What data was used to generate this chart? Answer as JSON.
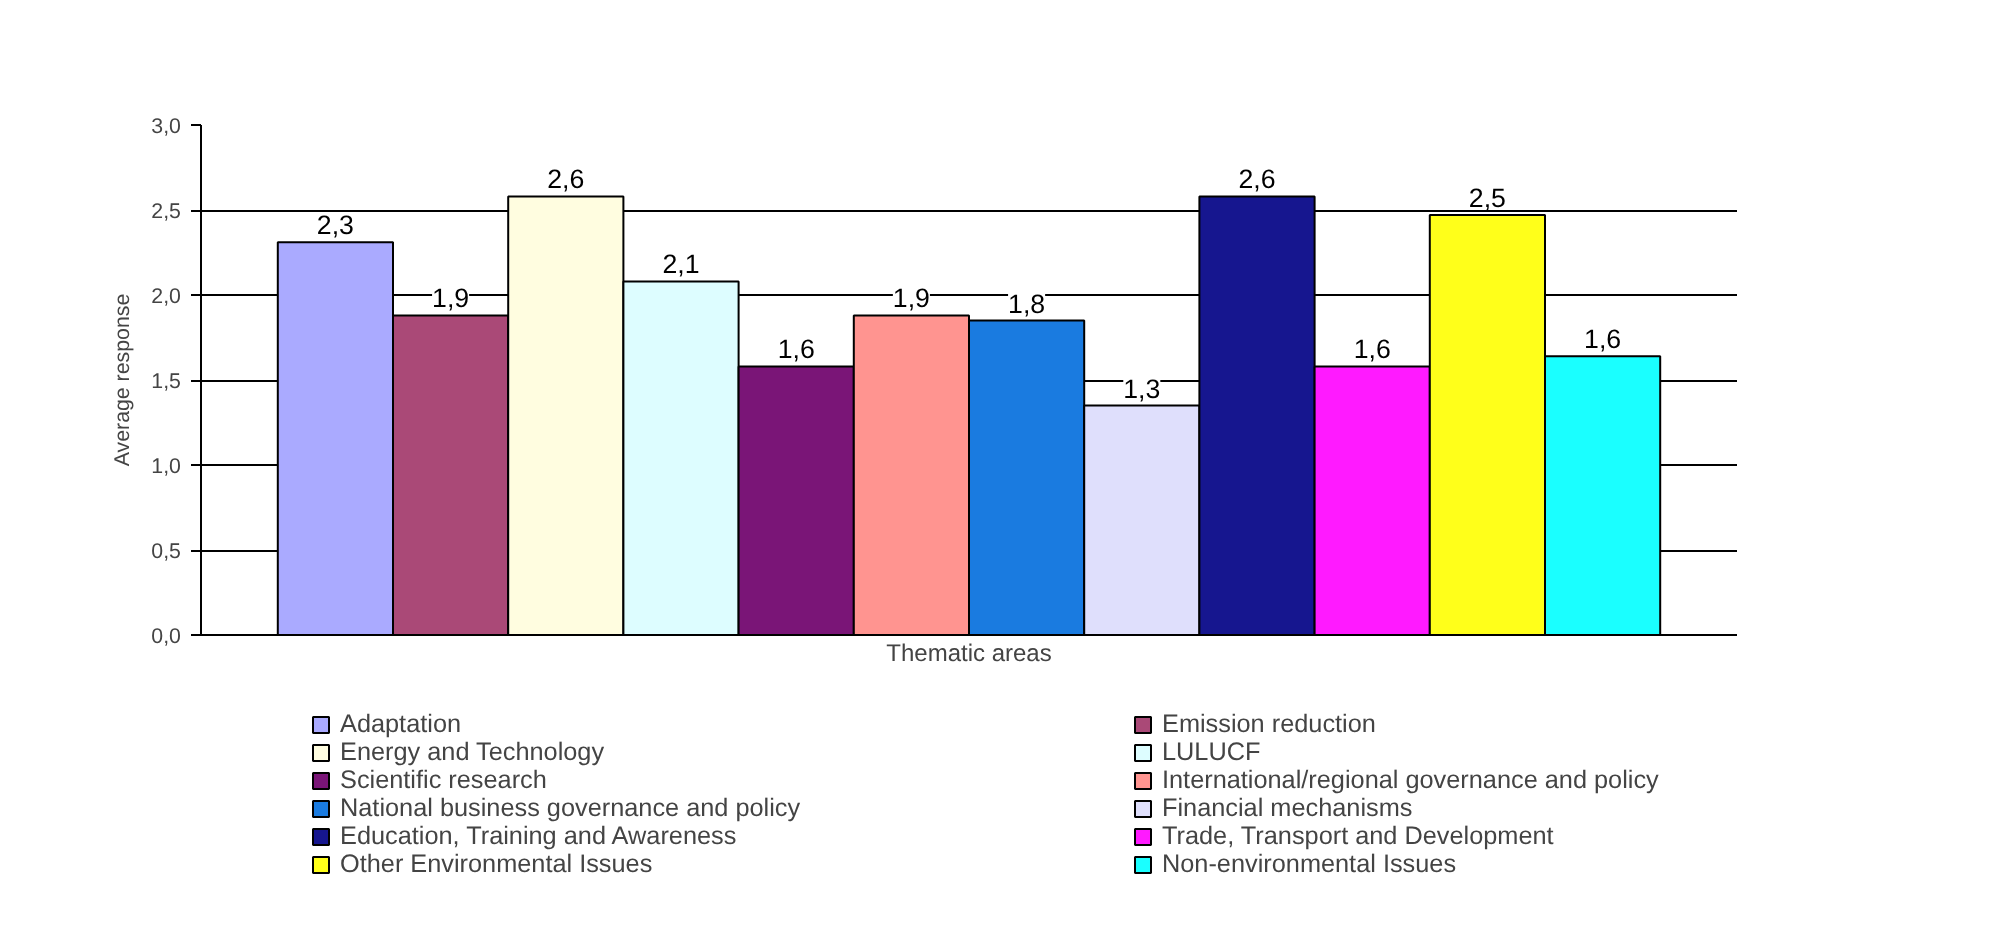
{
  "chart_data": {
    "type": "bar",
    "xlabel": "Thematic areas",
    "ylabel": "Average response",
    "categories": [
      null
    ],
    "ylim": [
      0,
      3
    ],
    "yticks": [
      {
        "value": 0,
        "label": "0,0"
      },
      {
        "value": 0.5,
        "label": "0,5"
      },
      {
        "value": 1,
        "label": "1,0"
      },
      {
        "value": 1.5,
        "label": "1,5"
      },
      {
        "value": 2,
        "label": "2,0"
      },
      {
        "value": 2.5,
        "label": "2,5"
      },
      {
        "value": 3,
        "label": "3,0"
      }
    ],
    "grid": "y",
    "legend": "bottom",
    "series": [
      {
        "name": "Adaptation",
        "color": "#aaaaff",
        "values": [
          2.31
        ],
        "value_labels": [
          "2,3"
        ]
      },
      {
        "name": "Emission reduction",
        "color": "#aa4977",
        "values": [
          1.88
        ],
        "value_labels": [
          "1,9"
        ]
      },
      {
        "name": "Energy and Technology",
        "color": "#fffde0",
        "values": [
          2.58
        ],
        "value_labels": [
          "2,6"
        ]
      },
      {
        "name": "LULUCF",
        "color": "#ddfdff",
        "values": [
          2.08
        ],
        "value_labels": [
          "2,1"
        ]
      },
      {
        "name": "Scientific research",
        "color": "#7a1577",
        "values": [
          1.58
        ],
        "value_labels": [
          "1,6"
        ]
      },
      {
        "name": "International/regional governance and policy",
        "color": "#ff9490",
        "values": [
          1.88
        ],
        "value_labels": [
          "1,9"
        ]
      },
      {
        "name": "National business governance and policy",
        "color": "#1a7be0",
        "values": [
          1.85
        ],
        "value_labels": [
          "1,8"
        ]
      },
      {
        "name": "Financial mechanisms",
        "color": "#dfdffc",
        "values": [
          1.35
        ],
        "value_labels": [
          "1,3"
        ]
      },
      {
        "name": "Education, Training and Awareness",
        "color": "#16168f",
        "values": [
          2.58
        ],
        "value_labels": [
          "2,6"
        ]
      },
      {
        "name": "Trade, Transport and Development",
        "color": "#ff1aff",
        "values": [
          1.58
        ],
        "value_labels": [
          "1,6"
        ]
      },
      {
        "name": "Other Environmental Issues",
        "color": "#ffff1a",
        "values": [
          2.47
        ],
        "value_labels": [
          "2,5"
        ]
      },
      {
        "name": "Non-environmental Issues",
        "color": "#1affff",
        "values": [
          1.64
        ],
        "value_labels": [
          "1,6"
        ]
      }
    ]
  }
}
